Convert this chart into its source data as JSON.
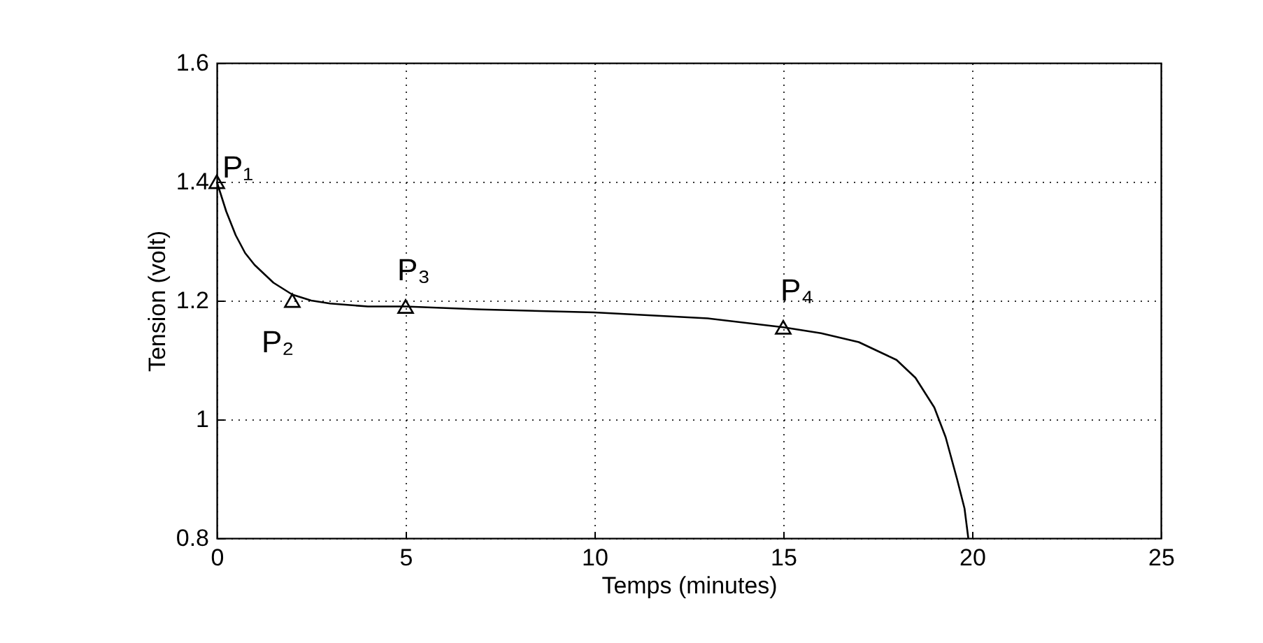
{
  "chart_data": {
    "type": "line",
    "xlabel": "Temps (minutes)",
    "ylabel": "Tension (volt)",
    "xlim": [
      0,
      25
    ],
    "xticks": [
      0,
      5,
      10,
      15,
      20,
      25
    ],
    "ylim": [
      0.8,
      1.6
    ],
    "yticks": [
      0.8,
      1,
      1.2,
      1.4,
      1.6
    ],
    "grid": true,
    "series": [
      {
        "color": "#000000",
        "x": [
          0,
          0.25,
          0.5,
          0.75,
          1,
          1.5,
          2,
          2.5,
          3,
          4,
          5,
          7,
          10,
          13,
          15,
          16,
          17,
          17.5,
          18,
          18.5,
          19,
          19.3,
          19.6,
          19.8,
          19.9
        ],
        "values": [
          1.4,
          1.35,
          1.31,
          1.28,
          1.26,
          1.23,
          1.21,
          1.2,
          1.195,
          1.19,
          1.19,
          1.185,
          1.18,
          1.17,
          1.155,
          1.145,
          1.13,
          1.115,
          1.1,
          1.07,
          1.02,
          0.97,
          0.9,
          0.85,
          0.8
        ]
      },
      {
        "type": "scatter",
        "color": "#000000",
        "marker": "triangle",
        "x": [
          0,
          2,
          5,
          15
        ],
        "values": [
          1.4,
          1.2,
          1.19,
          1.155
        ]
      }
    ],
    "annotations": [
      {
        "text": "P₁",
        "x": 0,
        "y": 1.4
      },
      {
        "text": "P₂",
        "x": 2,
        "y": 1.2
      },
      {
        "text": "P₃",
        "x": 5,
        "y": 1.19
      },
      {
        "text": "P₄",
        "x": 15,
        "y": 1.155
      }
    ]
  }
}
